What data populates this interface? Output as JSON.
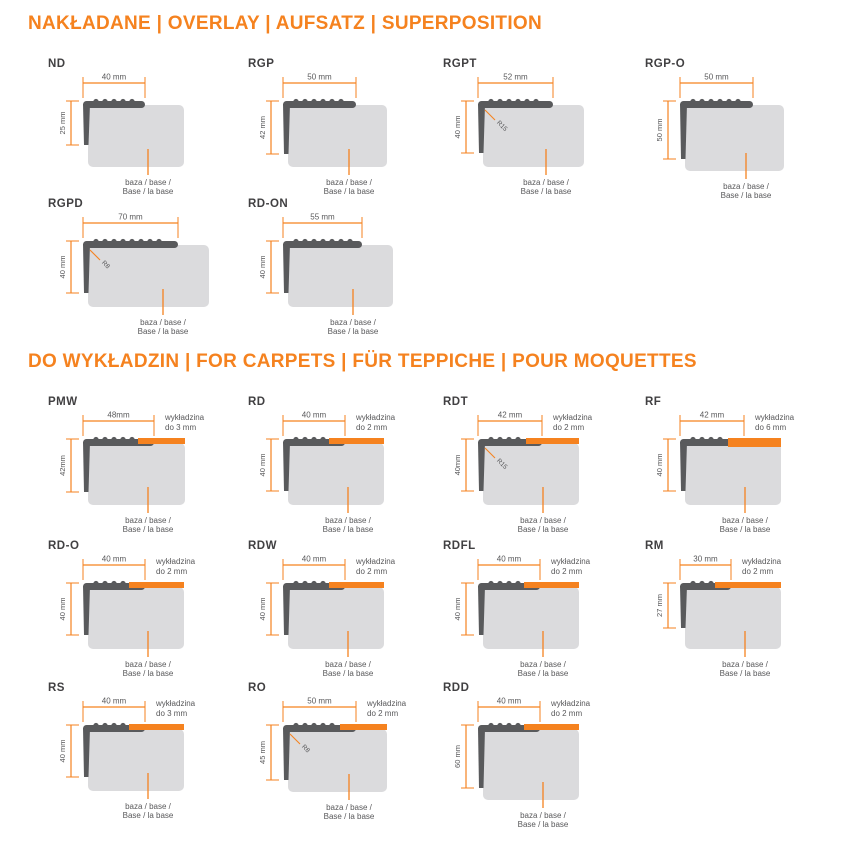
{
  "colors": {
    "accent": "#F5821F",
    "profile": "#595A5C",
    "base": "#DBDBDD",
    "dim_text": "#58585A",
    "name_text": "#414042"
  },
  "base_label": {
    "line1": "baza / base /",
    "line2": "Base / la base"
  },
  "sections": [
    {
      "title": "NAKŁADANE | OVERLAY | AUFSATZ | SUPERPOSITION",
      "profiles": [
        {
          "name": "ND",
          "width_mm": 40,
          "height_mm": 25,
          "width_label": "40 mm",
          "height_label": "25 mm"
        },
        {
          "name": "RGP",
          "width_mm": 50,
          "height_mm": 42,
          "width_label": "50 mm",
          "height_label": "42 mm"
        },
        {
          "name": "RGPT",
          "width_mm": 52,
          "height_mm": 40,
          "width_label": "52 mm",
          "height_label": "40 mm",
          "radius_label": "R15"
        },
        {
          "name": "RGP-O",
          "width_mm": 50,
          "height_mm": 50,
          "width_label": "50 mm",
          "height_label": "50 mm"
        },
        {
          "name": "RGPD",
          "width_mm": 70,
          "height_mm": 40,
          "width_label": "70 mm",
          "height_label": "40 mm",
          "radius_label": "R8"
        },
        {
          "name": "RD-ON",
          "width_mm": 55,
          "height_mm": 40,
          "width_label": "55 mm",
          "height_label": "40 mm"
        }
      ]
    },
    {
      "title": "DO WYKŁADZIN | FOR CARPETS | FÜR TEPPICHE | POUR MOQUETTES",
      "profiles": [
        {
          "name": "PMW",
          "width_mm": 48,
          "height_mm": 42,
          "width_label": "48mm",
          "height_label": "42mm",
          "carpet_mm": 3,
          "carpet_line1": "wykładzina",
          "carpet_line2": "do 3 mm"
        },
        {
          "name": "RD",
          "width_mm": 40,
          "height_mm": 40,
          "width_label": "40 mm",
          "height_label": "40 mm",
          "carpet_mm": 2,
          "carpet_line1": "wykładzina",
          "carpet_line2": "do 2 mm"
        },
        {
          "name": "RDT",
          "width_mm": 42,
          "height_mm": 40,
          "width_label": "42 mm",
          "height_label": "40mm",
          "carpet_mm": 2,
          "carpet_line1": "wykładzina",
          "carpet_line2": "do 2 mm",
          "radius_label": "R15"
        },
        {
          "name": "RF",
          "width_mm": 42,
          "height_mm": 40,
          "width_label": "42 mm",
          "height_label": "40 mm",
          "carpet_mm": 6,
          "carpet_line1": "wykładzina",
          "carpet_line2": "do 6 mm"
        },
        {
          "name": "RD-O",
          "width_mm": 40,
          "height_mm": 40,
          "width_label": "40 mm",
          "height_label": "40 mm",
          "carpet_mm": 2,
          "carpet_line1": "wykładzina",
          "carpet_line2": "do 2 mm"
        },
        {
          "name": "RDW",
          "width_mm": 40,
          "height_mm": 40,
          "width_label": "40 mm",
          "height_label": "40 mm",
          "carpet_mm": 2,
          "carpet_line1": "wykładzina",
          "carpet_line2": "do 2 mm"
        },
        {
          "name": "RDFL",
          "width_mm": 40,
          "height_mm": 40,
          "width_label": "40 mm",
          "height_label": "40 mm",
          "carpet_mm": 2,
          "carpet_line1": "wykładzina",
          "carpet_line2": "do 2 mm"
        },
        {
          "name": "RM",
          "width_mm": 30,
          "height_mm": 27,
          "width_label": "30 mm",
          "height_label": "27 mm",
          "carpet_mm": 2,
          "carpet_line1": "wykładzina",
          "carpet_line2": "do 2 mm"
        },
        {
          "name": "RS",
          "width_mm": 40,
          "height_mm": 40,
          "width_label": "40 mm",
          "height_label": "40 mm",
          "carpet_mm": 3,
          "carpet_line1": "wykładzina",
          "carpet_line2": "do 3 mm"
        },
        {
          "name": "RO",
          "width_mm": 50,
          "height_mm": 45,
          "width_label": "50 mm",
          "height_label": "45 mm",
          "carpet_mm": 2,
          "carpet_line1": "wykładzina",
          "carpet_line2": "do 2 mm",
          "radius_label": "R8"
        },
        {
          "name": "RDD",
          "width_mm": 40,
          "height_mm": 60,
          "width_label": "40 mm",
          "height_label": "60 mm",
          "carpet_mm": 2,
          "carpet_line1": "wykładzina",
          "carpet_line2": "do 2 mm"
        }
      ]
    }
  ]
}
